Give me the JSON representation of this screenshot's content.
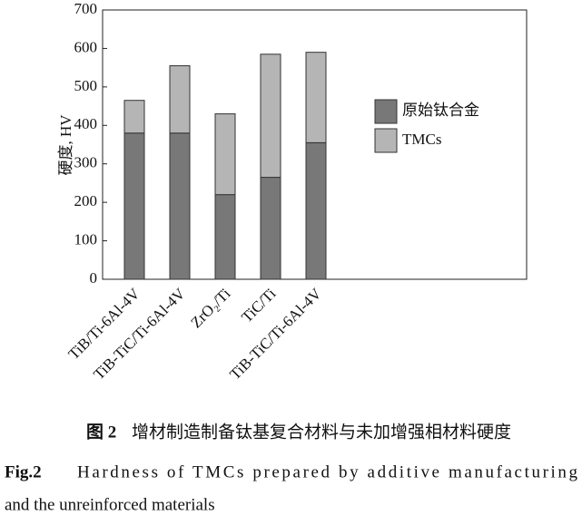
{
  "chart_data": {
    "type": "stacked_bar",
    "ylabel": "硬度, HV",
    "categories": [
      "TiB/Ti-6Al-4V",
      "TiB-TiC/Ti-6Al-4V",
      "ZrO₂/Ti",
      "TiC/Ti",
      "TiB-TiC/Ti-6Al-4V"
    ],
    "series": [
      {
        "name": "原始钛合金",
        "color": "#787878",
        "values": [
          380,
          380,
          220,
          265,
          355
        ]
      },
      {
        "name": "TMCs",
        "color": "#b5b5b5",
        "values": [
          85,
          175,
          210,
          320,
          235
        ]
      }
    ],
    "ylim": [
      0,
      700
    ],
    "yticks": [
      0,
      100,
      200,
      300,
      400,
      500,
      600,
      700
    ],
    "legend": "right"
  },
  "caption": {
    "cn_label": "图 2",
    "cn_text": "增材制造制备钛基复合材料与未加增强相材料硬度",
    "en_label": "Fig.2",
    "en_line1": "Hardness of TMCs prepared by additive manufacturing",
    "en_line2": "and the unreinforced materials"
  }
}
